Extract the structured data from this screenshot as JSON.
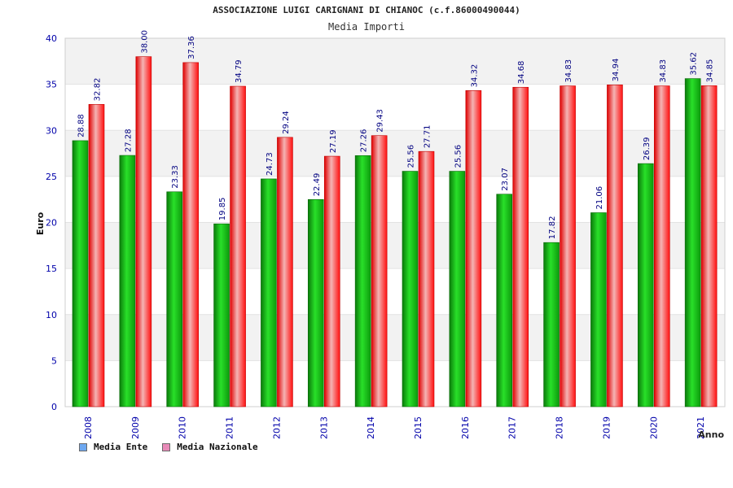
{
  "colors": {
    "ente_bar": "#10b010",
    "nazionale_bar": "#ff1a1a",
    "ente_legend": "#6ea8f0",
    "nazionale_legend": "#e88ab8",
    "tick_text": "#0000aa",
    "value_label": "#000080",
    "band": "#f2f2f2"
  },
  "chart_data": {
    "type": "bar",
    "title": "ASSOCIAZIONE LUIGI CARIGNANI DI CHIANOC (c.f.86000490044)",
    "subtitle": "Media Importi",
    "xlabel": "Anno",
    "ylabel": "Euro",
    "ylim": [
      0,
      40
    ],
    "yticks": [
      0,
      5,
      10,
      15,
      20,
      25,
      30,
      35,
      40
    ],
    "grid": "horizontal alternating bands",
    "legend_position": "bottom-left",
    "categories": [
      "2008",
      "2009",
      "2010",
      "2011",
      "2012",
      "2013",
      "2014",
      "2015",
      "2016",
      "2017",
      "2018",
      "2019",
      "2020",
      "2021"
    ],
    "series": [
      {
        "name": "Media Ente",
        "values": [
          28.88,
          27.28,
          23.33,
          19.85,
          24.73,
          22.49,
          27.26,
          25.56,
          25.56,
          23.07,
          17.82,
          21.06,
          26.39,
          35.62
        ],
        "labels": [
          "28.88",
          "27.28",
          "23.33",
          "19.85",
          "24.73",
          "22.49",
          "27.26",
          "25.56",
          "25.56",
          "23.07",
          "17.82",
          "21.06",
          "26.39",
          "35.62"
        ]
      },
      {
        "name": "Media Nazionale",
        "values": [
          32.82,
          38.0,
          37.36,
          34.79,
          29.24,
          27.19,
          29.43,
          27.71,
          34.32,
          34.68,
          34.83,
          34.94,
          34.83,
          34.85
        ],
        "labels": [
          "32.82",
          "38.00",
          "37.36",
          "34.79",
          "29.24",
          "27.19",
          "29.43",
          "27.71",
          "34.32",
          "34.68",
          "34.83",
          "34.94",
          "34.83",
          "34.85"
        ]
      }
    ]
  }
}
